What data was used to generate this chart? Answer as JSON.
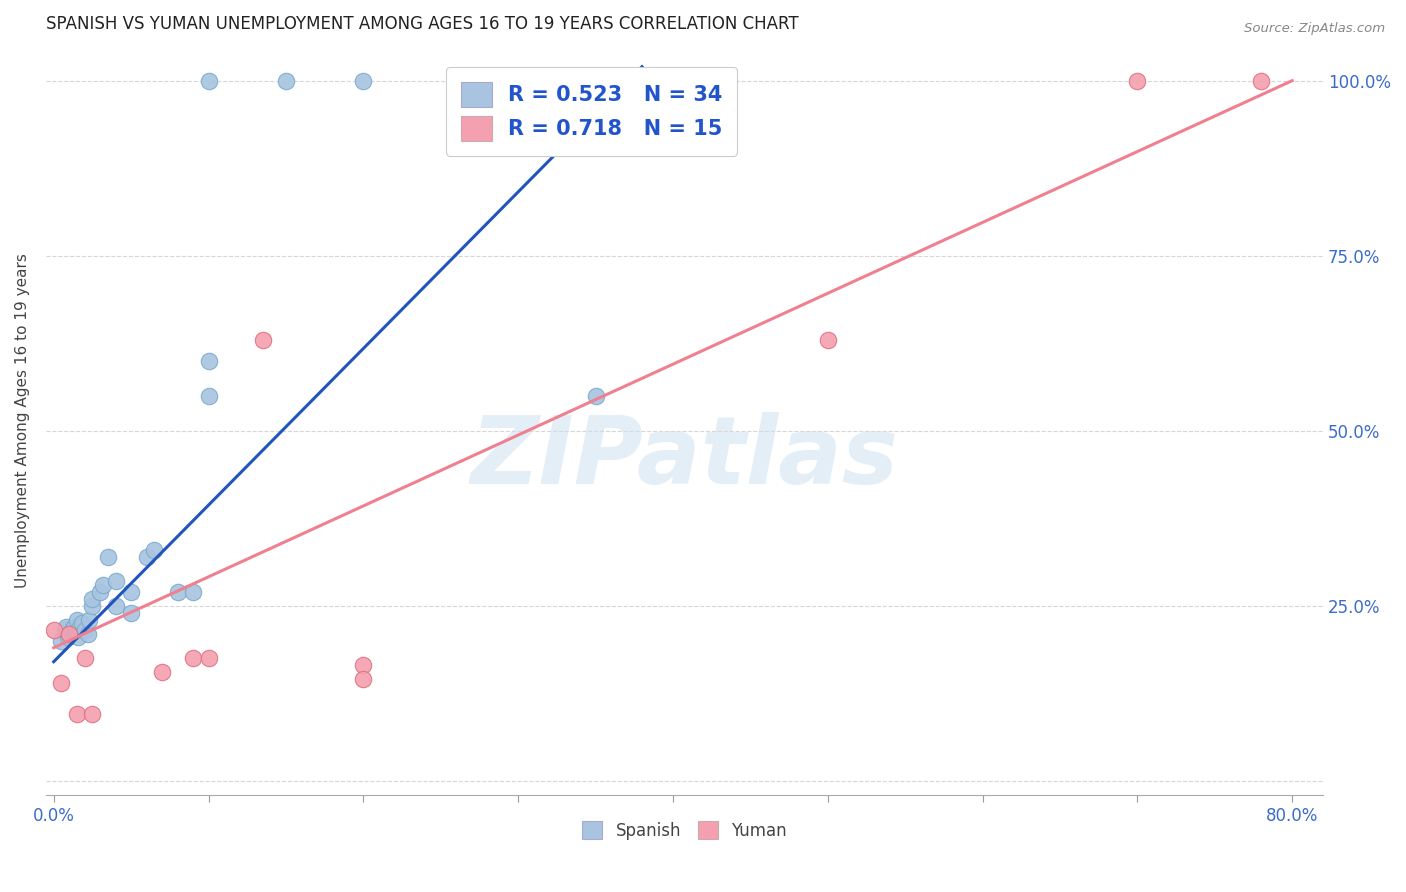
{
  "title": "SPANISH VS YUMAN UNEMPLOYMENT AMONG AGES 16 TO 19 YEARS CORRELATION CHART",
  "source": "Source: ZipAtlas.com",
  "ylabel": "Unemployment Among Ages 16 to 19 years",
  "xlim": [
    -0.005,
    0.82
  ],
  "ylim": [
    -0.02,
    1.05
  ],
  "x_tick_positions": [
    0.0,
    0.1,
    0.2,
    0.3,
    0.4,
    0.5,
    0.6,
    0.7,
    0.8
  ],
  "x_tick_labels": [
    "0.0%",
    "",
    "",
    "",
    "",
    "",
    "",
    "",
    "80.0%"
  ],
  "y_tick_positions": [
    0.0,
    0.25,
    0.5,
    0.75,
    1.0
  ],
  "y_tick_labels_right": [
    "",
    "25.0%",
    "50.0%",
    "75.0%",
    "100.0%"
  ],
  "spanish_R": 0.523,
  "spanish_N": 34,
  "yuman_R": 0.718,
  "yuman_N": 15,
  "spanish_color": "#a8c4e0",
  "yuman_color": "#f4a0b0",
  "spanish_line_color": "#2255bb",
  "yuman_line_color": "#f08090",
  "grid_color": "#cccccc",
  "background_color": "#ffffff",
  "spanish_x": [
    0.005,
    0.007,
    0.008,
    0.009,
    0.01,
    0.012,
    0.013,
    0.015,
    0.015,
    0.016,
    0.017,
    0.018,
    0.02,
    0.022,
    0.023,
    0.025,
    0.025,
    0.03,
    0.032,
    0.035,
    0.04,
    0.04,
    0.05,
    0.05,
    0.06,
    0.065,
    0.08,
    0.09,
    0.1,
    0.1,
    0.1,
    0.15,
    0.2,
    0.35
  ],
  "spanish_y": [
    0.2,
    0.215,
    0.22,
    0.205,
    0.21,
    0.215,
    0.22,
    0.215,
    0.23,
    0.205,
    0.22,
    0.225,
    0.215,
    0.21,
    0.23,
    0.25,
    0.26,
    0.27,
    0.28,
    0.32,
    0.25,
    0.285,
    0.24,
    0.27,
    0.32,
    0.33,
    0.27,
    0.27,
    0.55,
    0.6,
    1.0,
    1.0,
    1.0,
    0.55
  ],
  "yuman_x": [
    0.0,
    0.005,
    0.01,
    0.015,
    0.02,
    0.025,
    0.07,
    0.09,
    0.1,
    0.135,
    0.2,
    0.2,
    0.5,
    0.7,
    0.78
  ],
  "yuman_y": [
    0.215,
    0.14,
    0.21,
    0.095,
    0.175,
    0.095,
    0.155,
    0.175,
    0.175,
    0.63,
    0.165,
    0.145,
    0.63,
    1.0,
    1.0
  ],
  "spanish_line_x": [
    0.0,
    0.38
  ],
  "spanish_line_y": [
    0.17,
    1.02
  ],
  "yuman_line_x": [
    0.0,
    0.8
  ],
  "yuman_line_y": [
    0.19,
    1.0
  ]
}
